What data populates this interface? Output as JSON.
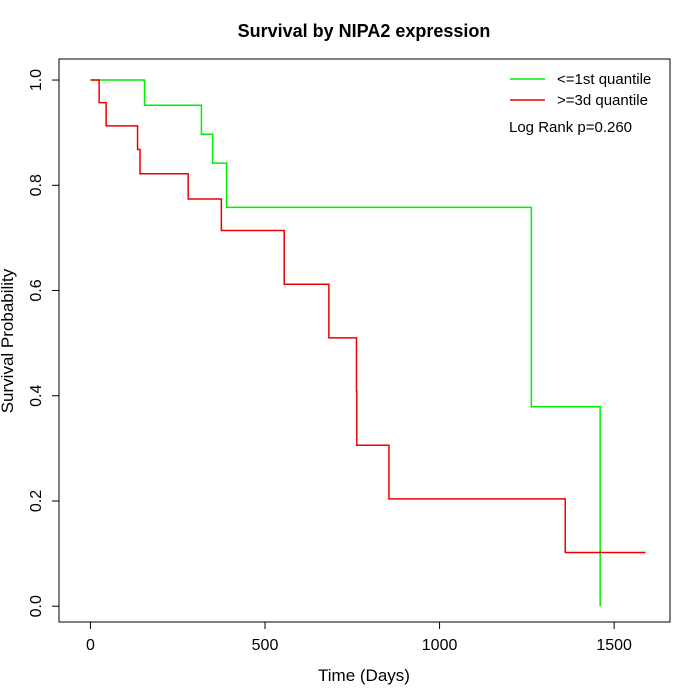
{
  "chart_data": {
    "type": "line",
    "step": true,
    "title": "Survival by NIPA2 expression",
    "xlabel": "Time (Days)",
    "ylabel": "Survival Probability",
    "xlim": [
      -90,
      1660
    ],
    "ylim": [
      -0.03,
      1.04
    ],
    "x_ticks": [
      0,
      500,
      1000,
      1500
    ],
    "y_ticks": [
      0.0,
      0.2,
      0.4,
      0.6,
      0.8,
      1.0
    ],
    "x_tick_labels": [
      "0",
      "500",
      "1000",
      "1500"
    ],
    "y_tick_labels": [
      "0.0",
      "0.2",
      "0.4",
      "0.6",
      "0.8",
      "1.0"
    ],
    "grid": false,
    "legend_position": "top-right",
    "annotation": "Log Rank p=0.260",
    "series": [
      {
        "name": "<=1st quantile",
        "color": "#00ee00",
        "points": [
          [
            0,
            1.0
          ],
          [
            155,
            1.0
          ],
          [
            155,
            0.952
          ],
          [
            318,
            0.952
          ],
          [
            318,
            0.897
          ],
          [
            350,
            0.897
          ],
          [
            350,
            0.842
          ],
          [
            390,
            0.842
          ],
          [
            390,
            0.758
          ],
          [
            1263,
            0.758
          ],
          [
            1263,
            0.379
          ],
          [
            1460,
            0.379
          ],
          [
            1460,
            0.0
          ]
        ]
      },
      {
        "name": ">=3d quantile",
        "color": "#ee0000",
        "points": [
          [
            0,
            1.0
          ],
          [
            25,
            1.0
          ],
          [
            25,
            0.957
          ],
          [
            45,
            0.957
          ],
          [
            45,
            0.913
          ],
          [
            135,
            0.913
          ],
          [
            135,
            0.868
          ],
          [
            142,
            0.868
          ],
          [
            142,
            0.822
          ],
          [
            280,
            0.822
          ],
          [
            280,
            0.774
          ],
          [
            375,
            0.774
          ],
          [
            375,
            0.714
          ],
          [
            555,
            0.714
          ],
          [
            555,
            0.612
          ],
          [
            683,
            0.612
          ],
          [
            683,
            0.51
          ],
          [
            762,
            0.51
          ],
          [
            762,
            0.408
          ],
          [
            763,
            0.408
          ],
          [
            763,
            0.306
          ],
          [
            855,
            0.306
          ],
          [
            855,
            0.204
          ],
          [
            1360,
            0.204
          ],
          [
            1360,
            0.102
          ],
          [
            1590,
            0.102
          ]
        ]
      }
    ]
  }
}
